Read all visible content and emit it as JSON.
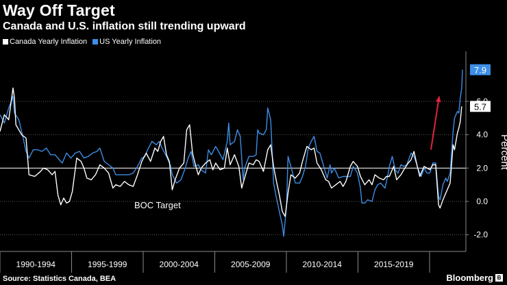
{
  "header": {
    "title": "Way Off Target",
    "subtitle": "Canada and U.S. inflation still trending upward"
  },
  "legend": {
    "canada": "Canada Yearly Inflation",
    "us": "US Yearly Inflation"
  },
  "footer": {
    "source": "Source: Statistics Canada, BEA",
    "brand": "Bloomberg"
  },
  "colors": {
    "canada": "#ffffff",
    "us": "#3d8ee6",
    "background": "#000000",
    "grid": "#5a5a5a",
    "arrow": "#e0243a"
  },
  "chart_data": {
    "type": "line",
    "title": "Way Off Target",
    "subtitle": "Canada and U.S. inflation still trending upward",
    "xlabel": "",
    "ylabel": "Percent",
    "ylim": [
      -3,
      9
    ],
    "xlim": [
      1990,
      2021.95
    ],
    "y_ticks": [
      -2.0,
      0.0,
      2.0,
      4.0,
      6.0
    ],
    "y_tick_labels": [
      "-2.0",
      "0.0",
      "2.0",
      "4.0",
      "6.0"
    ],
    "x_categories": [
      "1990-1994",
      "1995-1999",
      "2000-2004",
      "2005-2009",
      "2010-2014",
      "2015-2019"
    ],
    "grid": true,
    "legend_position": "top-left",
    "reference_line": {
      "value": 2.0,
      "label": "BOC Target"
    },
    "end_labels": {
      "us": "7.9",
      "canada": "5.7"
    },
    "annotation": "upward red arrow near latest readings",
    "series": [
      {
        "name": "Canada Yearly Inflation",
        "points": [
          [
            1990.0,
            4.2
          ],
          [
            1990.3,
            5.2
          ],
          [
            1990.6,
            4.9
          ],
          [
            1990.9,
            6.8
          ],
          [
            1991.0,
            6.2
          ],
          [
            1991.1,
            4.6
          ],
          [
            1991.5,
            4.0
          ],
          [
            1991.8,
            3.8
          ],
          [
            1992.0,
            1.6
          ],
          [
            1992.4,
            1.5
          ],
          [
            1992.8,
            1.8
          ],
          [
            1993.0,
            2.0
          ],
          [
            1993.3,
            1.9
          ],
          [
            1993.6,
            1.6
          ],
          [
            1993.8,
            1.8
          ],
          [
            1994.0,
            0.4
          ],
          [
            1994.2,
            -0.2
          ],
          [
            1994.4,
            0.2
          ],
          [
            1994.6,
            -0.1
          ],
          [
            1994.8,
            0.0
          ],
          [
            1995.0,
            0.6
          ],
          [
            1995.3,
            2.6
          ],
          [
            1995.6,
            2.4
          ],
          [
            1995.8,
            2.0
          ],
          [
            1996.0,
            1.4
          ],
          [
            1996.3,
            1.3
          ],
          [
            1996.6,
            1.6
          ],
          [
            1996.9,
            2.2
          ],
          [
            1997.2,
            2.0
          ],
          [
            1997.5,
            1.7
          ],
          [
            1997.8,
            0.8
          ],
          [
            1998.0,
            1.0
          ],
          [
            1998.3,
            0.9
          ],
          [
            1998.6,
            1.2
          ],
          [
            1998.9,
            1.0
          ],
          [
            1999.2,
            0.9
          ],
          [
            1999.5,
            1.6
          ],
          [
            1999.8,
            2.4
          ],
          [
            2000.1,
            2.9
          ],
          [
            2000.4,
            2.4
          ],
          [
            2000.7,
            3.2
          ],
          [
            2000.9,
            3.0
          ],
          [
            2001.1,
            3.6
          ],
          [
            2001.3,
            3.9
          ],
          [
            2001.5,
            2.8
          ],
          [
            2001.7,
            2.4
          ],
          [
            2001.9,
            0.7
          ],
          [
            2002.1,
            1.3
          ],
          [
            2002.4,
            2.0
          ],
          [
            2002.7,
            2.3
          ],
          [
            2002.9,
            4.3
          ],
          [
            2003.1,
            4.6
          ],
          [
            2003.3,
            2.9
          ],
          [
            2003.5,
            2.2
          ],
          [
            2003.7,
            1.6
          ],
          [
            2003.9,
            2.0
          ],
          [
            2004.2,
            2.3
          ],
          [
            2004.5,
            2.5
          ],
          [
            2004.7,
            1.9
          ],
          [
            2004.9,
            2.3
          ],
          [
            2005.2,
            1.9
          ],
          [
            2005.5,
            2.0
          ],
          [
            2005.7,
            3.2
          ],
          [
            2005.9,
            2.2
          ],
          [
            2006.2,
            2.8
          ],
          [
            2006.5,
            2.1
          ],
          [
            2006.7,
            0.8
          ],
          [
            2006.9,
            1.4
          ],
          [
            2007.2,
            2.3
          ],
          [
            2007.5,
            2.2
          ],
          [
            2007.7,
            2.5
          ],
          [
            2007.9,
            2.4
          ],
          [
            2008.2,
            1.8
          ],
          [
            2008.5,
            3.1
          ],
          [
            2008.7,
            3.4
          ],
          [
            2008.9,
            2.1
          ],
          [
            2009.1,
            1.2
          ],
          [
            2009.3,
            0.4
          ],
          [
            2009.5,
            -0.6
          ],
          [
            2009.7,
            -0.9
          ],
          [
            2009.9,
            0.5
          ],
          [
            2010.1,
            1.6
          ],
          [
            2010.4,
            1.4
          ],
          [
            2010.7,
            1.7
          ],
          [
            2010.9,
            2.4
          ],
          [
            2011.2,
            3.3
          ],
          [
            2011.5,
            3.1
          ],
          [
            2011.7,
            3.2
          ],
          [
            2011.9,
            2.3
          ],
          [
            2012.2,
            1.9
          ],
          [
            2012.5,
            1.3
          ],
          [
            2012.7,
            1.2
          ],
          [
            2012.9,
            0.8
          ],
          [
            2013.2,
            1.0
          ],
          [
            2013.5,
            1.2
          ],
          [
            2013.7,
            0.9
          ],
          [
            2013.9,
            1.2
          ],
          [
            2014.2,
            2.1
          ],
          [
            2014.4,
            2.4
          ],
          [
            2014.7,
            2.1
          ],
          [
            2014.9,
            1.5
          ],
          [
            2015.2,
            1.0
          ],
          [
            2015.5,
            1.3
          ],
          [
            2015.7,
            1.0
          ],
          [
            2015.9,
            1.6
          ],
          [
            2016.2,
            1.4
          ],
          [
            2016.5,
            1.3
          ],
          [
            2016.7,
            1.5
          ],
          [
            2016.9,
            1.5
          ],
          [
            2017.2,
            2.1
          ],
          [
            2017.4,
            1.3
          ],
          [
            2017.7,
            1.6
          ],
          [
            2017.9,
            1.9
          ],
          [
            2018.2,
            2.3
          ],
          [
            2018.4,
            2.5
          ],
          [
            2018.6,
            3.0
          ],
          [
            2018.8,
            2.2
          ],
          [
            2019.0,
            1.5
          ],
          [
            2019.3,
            2.1
          ],
          [
            2019.5,
            2.0
          ],
          [
            2019.7,
            1.9
          ],
          [
            2019.9,
            2.2
          ],
          [
            2020.1,
            2.2
          ],
          [
            2020.3,
            -0.2
          ],
          [
            2020.4,
            -0.4
          ],
          [
            2020.6,
            0.1
          ],
          [
            2020.8,
            0.5
          ],
          [
            2020.9,
            0.7
          ],
          [
            2021.1,
            1.1
          ],
          [
            2021.3,
            3.4
          ],
          [
            2021.4,
            3.1
          ],
          [
            2021.6,
            4.1
          ],
          [
            2021.7,
            4.4
          ],
          [
            2021.8,
            4.8
          ],
          [
            2021.9,
            5.7
          ]
        ]
      },
      {
        "name": "US Yearly Inflation",
        "points": [
          [
            1990.0,
            5.2
          ],
          [
            1990.3,
            4.7
          ],
          [
            1990.6,
            5.6
          ],
          [
            1990.9,
            6.3
          ],
          [
            1991.0,
            5.3
          ],
          [
            1991.3,
            4.9
          ],
          [
            1991.6,
            3.8
          ],
          [
            1991.8,
            3.0
          ],
          [
            1992.0,
            2.6
          ],
          [
            1992.3,
            3.1
          ],
          [
            1992.6,
            3.1
          ],
          [
            1992.9,
            3.0
          ],
          [
            1993.2,
            3.2
          ],
          [
            1993.5,
            2.8
          ],
          [
            1993.8,
            2.8
          ],
          [
            1994.0,
            2.6
          ],
          [
            1994.3,
            2.3
          ],
          [
            1994.6,
            2.9
          ],
          [
            1994.9,
            2.6
          ],
          [
            1995.2,
            2.9
          ],
          [
            1995.5,
            3.0
          ],
          [
            1995.8,
            2.6
          ],
          [
            1996.1,
            2.7
          ],
          [
            1996.4,
            2.9
          ],
          [
            1996.7,
            3.0
          ],
          [
            1996.9,
            3.2
          ],
          [
            1997.2,
            2.4
          ],
          [
            1997.5,
            2.2
          ],
          [
            1997.8,
            2.0
          ],
          [
            1998.0,
            1.6
          ],
          [
            1998.3,
            1.6
          ],
          [
            1998.6,
            1.6
          ],
          [
            1998.9,
            1.6
          ],
          [
            1999.2,
            1.7
          ],
          [
            1999.5,
            2.1
          ],
          [
            1999.8,
            2.6
          ],
          [
            2000.0,
            2.7
          ],
          [
            2000.2,
            3.1
          ],
          [
            2000.5,
            3.6
          ],
          [
            2000.8,
            3.4
          ],
          [
            2001.0,
            3.6
          ],
          [
            2001.2,
            3.2
          ],
          [
            2001.5,
            2.7
          ],
          [
            2001.8,
            2.1
          ],
          [
            2001.9,
            1.6
          ],
          [
            2002.2,
            1.1
          ],
          [
            2002.5,
            1.3
          ],
          [
            2002.8,
            2.0
          ],
          [
            2003.0,
            2.6
          ],
          [
            2003.2,
            3.0
          ],
          [
            2003.4,
            2.1
          ],
          [
            2003.7,
            2.2
          ],
          [
            2003.9,
            1.9
          ],
          [
            2004.2,
            1.7
          ],
          [
            2004.4,
            3.1
          ],
          [
            2004.6,
            2.8
          ],
          [
            2004.9,
            3.3
          ],
          [
            2005.1,
            3.0
          ],
          [
            2005.4,
            2.5
          ],
          [
            2005.7,
            3.6
          ],
          [
            2005.8,
            4.7
          ],
          [
            2005.9,
            3.4
          ],
          [
            2006.2,
            3.6
          ],
          [
            2006.4,
            4.3
          ],
          [
            2006.6,
            3.9
          ],
          [
            2006.8,
            1.3
          ],
          [
            2006.9,
            2.0
          ],
          [
            2007.2,
            2.7
          ],
          [
            2007.5,
            2.7
          ],
          [
            2007.7,
            2.8
          ],
          [
            2007.8,
            4.3
          ],
          [
            2007.9,
            4.1
          ],
          [
            2008.2,
            4.0
          ],
          [
            2008.4,
            4.3
          ],
          [
            2008.5,
            5.6
          ],
          [
            2008.7,
            4.9
          ],
          [
            2008.9,
            1.1
          ],
          [
            2009.1,
            0.2
          ],
          [
            2009.3,
            -0.6
          ],
          [
            2009.5,
            -1.4
          ],
          [
            2009.6,
            -2.1
          ],
          [
            2009.8,
            -0.2
          ],
          [
            2009.9,
            2.7
          ],
          [
            2010.1,
            2.1
          ],
          [
            2010.4,
            1.1
          ],
          [
            2010.7,
            1.1
          ],
          [
            2010.9,
            1.5
          ],
          [
            2011.1,
            2.1
          ],
          [
            2011.3,
            3.2
          ],
          [
            2011.5,
            3.6
          ],
          [
            2011.7,
            3.9
          ],
          [
            2011.9,
            3.0
          ],
          [
            2012.1,
            2.9
          ],
          [
            2012.3,
            2.3
          ],
          [
            2012.6,
            1.4
          ],
          [
            2012.8,
            2.2
          ],
          [
            2012.9,
            1.7
          ],
          [
            2013.1,
            2.0
          ],
          [
            2013.4,
            1.4
          ],
          [
            2013.7,
            1.5
          ],
          [
            2013.9,
            1.5
          ],
          [
            2014.2,
            1.5
          ],
          [
            2014.4,
            2.1
          ],
          [
            2014.7,
            1.7
          ],
          [
            2014.9,
            0.8
          ],
          [
            2015.0,
            -0.1
          ],
          [
            2015.2,
            -0.1
          ],
          [
            2015.4,
            0.1
          ],
          [
            2015.7,
            0.0
          ],
          [
            2015.9,
            0.7
          ],
          [
            2016.1,
            1.0
          ],
          [
            2016.3,
            1.1
          ],
          [
            2016.6,
            0.8
          ],
          [
            2016.8,
            1.6
          ],
          [
            2016.9,
            2.1
          ],
          [
            2017.1,
            2.7
          ],
          [
            2017.3,
            1.9
          ],
          [
            2017.5,
            1.7
          ],
          [
            2017.7,
            2.2
          ],
          [
            2017.9,
            2.1
          ],
          [
            2018.1,
            2.2
          ],
          [
            2018.4,
            2.9
          ],
          [
            2018.6,
            2.7
          ],
          [
            2018.8,
            2.2
          ],
          [
            2018.9,
            1.9
          ],
          [
            2019.1,
            1.5
          ],
          [
            2019.3,
            2.0
          ],
          [
            2019.5,
            1.7
          ],
          [
            2019.7,
            1.7
          ],
          [
            2019.9,
            2.3
          ],
          [
            2020.1,
            2.3
          ],
          [
            2020.3,
            0.3
          ],
          [
            2020.4,
            0.1
          ],
          [
            2020.6,
            1.0
          ],
          [
            2020.8,
            1.4
          ],
          [
            2020.9,
            1.2
          ],
          [
            2021.1,
            1.7
          ],
          [
            2021.3,
            4.2
          ],
          [
            2021.4,
            5.0
          ],
          [
            2021.6,
            5.4
          ],
          [
            2021.7,
            5.3
          ],
          [
            2021.8,
            6.2
          ],
          [
            2021.9,
            6.8
          ],
          [
            2021.95,
            7.9
          ]
        ]
      }
    ]
  }
}
